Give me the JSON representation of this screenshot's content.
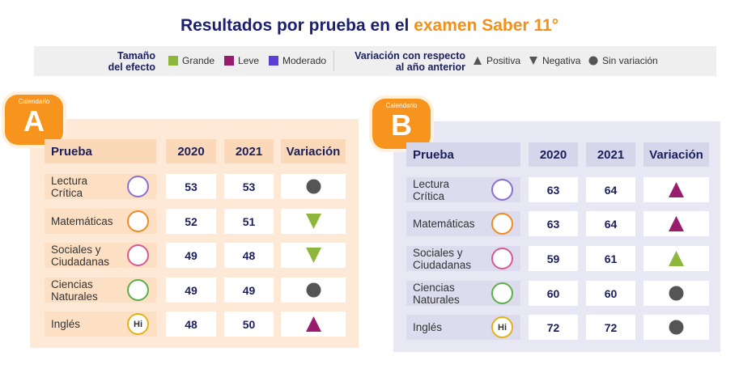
{
  "title": {
    "text": "Resultados por prueba en el ",
    "highlight": "examen Saber 11°"
  },
  "legend": {
    "effect_title": "Tamaño\ndel efecto",
    "effect": [
      {
        "label": "Grande",
        "color": "#8cb63c"
      },
      {
        "label": "Leve",
        "color": "#9a1c6e"
      },
      {
        "label": "Moderado",
        "color": "#5b3fd6"
      }
    ],
    "variation_title": "Variación con respecto\nal año anterior",
    "variation": [
      {
        "label": "Positiva",
        "color": "#555555"
      },
      {
        "label": "Negativa",
        "color": "#555555"
      },
      {
        "label": "Sin variación",
        "color": "#555555"
      }
    ]
  },
  "panels": [
    {
      "badge_label": "Calendario",
      "badge_letter": "A",
      "columns": [
        "Prueba",
        "2020",
        "2021",
        "Variación"
      ],
      "rows": [
        {
          "name": "Lectura\nCrítica",
          "v2020": 53,
          "v2021": 53,
          "variation": "Sin variación",
          "effect": null
        },
        {
          "name": "Matemáticas",
          "v2020": 52,
          "v2021": 51,
          "variation": "Negativa",
          "effect": "Grande"
        },
        {
          "name": "Sociales y\nCiudadanas",
          "v2020": 49,
          "v2021": 48,
          "variation": "Negativa",
          "effect": "Grande"
        },
        {
          "name": "Ciencias\nNaturales",
          "v2020": 49,
          "v2021": 49,
          "variation": "Sin variación",
          "effect": null
        },
        {
          "name": "Inglés",
          "v2020": 48,
          "v2021": 50,
          "variation": "Positiva",
          "effect": "Leve",
          "icon_label": "Hi"
        }
      ]
    },
    {
      "badge_label": "Calendario",
      "badge_letter": "B",
      "columns": [
        "Prueba",
        "2020",
        "2021",
        "Variación"
      ],
      "rows": [
        {
          "name": "Lectura\nCrítica",
          "v2020": 63,
          "v2021": 64,
          "variation": "Positiva",
          "effect": "Leve"
        },
        {
          "name": "Matemáticas",
          "v2020": 63,
          "v2021": 64,
          "variation": "Positiva",
          "effect": "Leve"
        },
        {
          "name": "Sociales y\nCiudadanas",
          "v2020": 59,
          "v2021": 61,
          "variation": "Positiva",
          "effect": "Grande"
        },
        {
          "name": "Ciencias\nNaturales",
          "v2020": 60,
          "v2021": 60,
          "variation": "Sin variación",
          "effect": null
        },
        {
          "name": "Inglés",
          "v2020": 72,
          "v2021": 72,
          "variation": "Sin variación",
          "effect": null,
          "icon_label": "Hi"
        }
      ]
    }
  ]
}
